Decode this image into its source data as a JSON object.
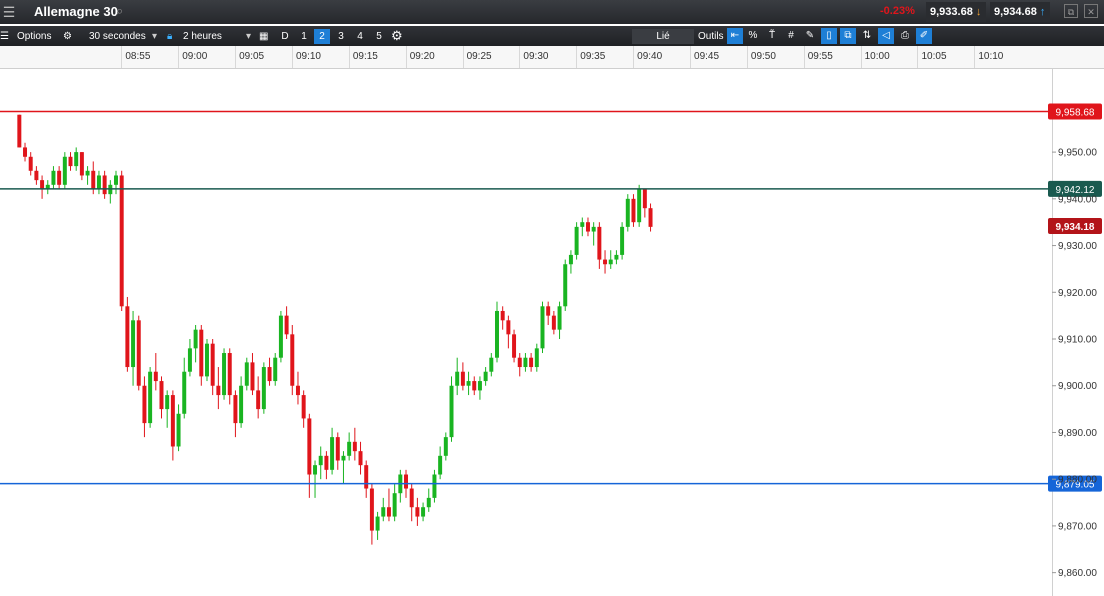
{
  "window": {
    "title": "Allemagne 30",
    "change": "-0.23%",
    "bid": "9,933.68",
    "ask": "9,934.68"
  },
  "toolbar": {
    "options_label": "Options",
    "interval": "30 secondes",
    "range": "2 heures",
    "d_label": "D",
    "layouts": [
      "1",
      "2",
      "3",
      "4",
      "5"
    ],
    "active_layout": "2",
    "linked_label": "Lié",
    "tools_label": "Outils",
    "percent_label": "%",
    "text_tool_label": "T̃"
  },
  "colors": {
    "bull": "#19b421",
    "bear": "#e0151b",
    "resistance": "#e0151b",
    "current": "#1a5a4f",
    "support": "#1565d8",
    "last": "#b31419"
  },
  "chart_data": {
    "type": "candlestick",
    "instrument": "Allemagne 30",
    "interval": "30 secondes",
    "x_ticks": [
      "08:55",
      "09:00",
      "09:05",
      "09:10",
      "09:15",
      "09:20",
      "09:25",
      "09:30",
      "09:35",
      "09:40",
      "09:45",
      "09:50",
      "09:55",
      "10:00",
      "10:05",
      "10:10"
    ],
    "y_ticks": [
      "9,860.00",
      "9,870.00",
      "9,880.00",
      "9,890.00",
      "9,900.00",
      "9,910.00",
      "9,920.00",
      "9,930.00",
      "9,940.00",
      "9,950.00"
    ],
    "ylim": [
      9855,
      9968
    ],
    "xlim_minutes": [
      -11.2,
      81.3
    ],
    "horizontal_lines": [
      {
        "value": 9958.68,
        "label": "9,958.68",
        "role": "resistance"
      },
      {
        "value": 9942.12,
        "label": "9,942.12",
        "role": "current"
      },
      {
        "value": 9879.05,
        "label": "9,879.05",
        "role": "support"
      }
    ],
    "last_price": {
      "value": 9934.18,
      "label": "9,934.18"
    },
    "start_time": "08:45:30",
    "candles": [
      [
        9958,
        9958,
        9951,
        9951
      ],
      [
        9951,
        9952,
        9948,
        9949
      ],
      [
        9949,
        9950,
        9945,
        9946
      ],
      [
        9946,
        9947,
        9943,
        9944
      ],
      [
        9944,
        9945,
        9940,
        9942
      ],
      [
        9942,
        9944,
        9941,
        9943
      ],
      [
        9943,
        9947,
        9942,
        9946
      ],
      [
        9946,
        9947,
        9942,
        9943
      ],
      [
        9943,
        9950,
        9942,
        9949
      ],
      [
        9949,
        9950,
        9946,
        9947
      ],
      [
        9947,
        9951,
        9946,
        9950
      ],
      [
        9950,
        9950,
        9944,
        9945
      ],
      [
        9945,
        9947,
        9943,
        9946
      ],
      [
        9946,
        9948,
        9941,
        9942
      ],
      [
        9942,
        9946,
        9941,
        9945
      ],
      [
        9945,
        9946,
        9940,
        9941
      ],
      [
        9941,
        9944,
        9939,
        9943
      ],
      [
        9943,
        9946,
        9941,
        9945
      ],
      [
        9945,
        9946,
        9916,
        9917
      ],
      [
        9917,
        9919,
        9903,
        9904
      ],
      [
        9904,
        9916,
        9900,
        9914
      ],
      [
        9914,
        9915,
        9899,
        9900
      ],
      [
        9900,
        9902,
        9889,
        9892
      ],
      [
        9892,
        9904,
        9891,
        9903
      ],
      [
        9903,
        9907,
        9899,
        9901
      ],
      [
        9901,
        9902,
        9893,
        9895
      ],
      [
        9895,
        9899,
        9891,
        9898
      ],
      [
        9898,
        9899,
        9884,
        9887
      ],
      [
        9887,
        9896,
        9886,
        9894
      ],
      [
        9894,
        9906,
        9893,
        9903
      ],
      [
        9903,
        9910,
        9902,
        9908
      ],
      [
        9908,
        9913,
        9905,
        9912
      ],
      [
        9912,
        9913,
        9900,
        9902
      ],
      [
        9902,
        9910,
        9901,
        9909
      ],
      [
        9909,
        9910,
        9898,
        9900
      ],
      [
        9900,
        9904,
        9895,
        9898
      ],
      [
        9898,
        9908,
        9897,
        9907
      ],
      [
        9907,
        9908,
        9896,
        9898
      ],
      [
        9898,
        9899,
        9889,
        9892
      ],
      [
        9892,
        9902,
        9891,
        9900
      ],
      [
        9900,
        9906,
        9899,
        9905
      ],
      [
        9905,
        9907,
        9898,
        9899
      ],
      [
        9899,
        9902,
        9893,
        9895
      ],
      [
        9895,
        9905,
        9894,
        9904
      ],
      [
        9904,
        9906,
        9900,
        9901
      ],
      [
        9901,
        9907,
        9900,
        9906
      ],
      [
        9906,
        9916,
        9905,
        9915
      ],
      [
        9915,
        9917,
        9910,
        9911
      ],
      [
        9911,
        9913,
        9898,
        9900
      ],
      [
        9900,
        9903,
        9896,
        9898
      ],
      [
        9898,
        9899,
        9891,
        9893
      ],
      [
        9893,
        9894,
        9876,
        9881
      ],
      [
        9881,
        9884,
        9876,
        9883
      ],
      [
        9883,
        9887,
        9880,
        9885
      ],
      [
        9885,
        9886,
        9880,
        9882
      ],
      [
        9882,
        9891,
        9881,
        9889
      ],
      [
        9889,
        9890,
        9882,
        9884
      ],
      [
        9884,
        9886,
        9879,
        9885
      ],
      [
        9885,
        9890,
        9884,
        9888
      ],
      [
        9888,
        9891,
        9884,
        9886
      ],
      [
        9886,
        9888,
        9881,
        9883
      ],
      [
        9883,
        9884,
        9876,
        9878
      ],
      [
        9878,
        9879,
        9866,
        9869
      ],
      [
        9869,
        9873,
        9867,
        9872
      ],
      [
        9872,
        9876,
        9871,
        9874
      ],
      [
        9874,
        9878,
        9871,
        9872
      ],
      [
        9872,
        9879,
        9871,
        9877
      ],
      [
        9877,
        9882,
        9875,
        9881
      ],
      [
        9881,
        9882,
        9876,
        9878
      ],
      [
        9878,
        9879,
        9871,
        9874
      ],
      [
        9874,
        9876,
        9870,
        9872
      ],
      [
        9872,
        9875,
        9871,
        9874
      ],
      [
        9874,
        9878,
        9873,
        9876
      ],
      [
        9876,
        9882,
        9875,
        9881
      ],
      [
        9881,
        9887,
        9880,
        9885
      ],
      [
        9885,
        9890,
        9884,
        9889
      ],
      [
        9889,
        9902,
        9888,
        9900
      ],
      [
        9900,
        9906,
        9898,
        9903
      ],
      [
        9903,
        9905,
        9899,
        9900
      ],
      [
        9900,
        9903,
        9898,
        9901
      ],
      [
        9901,
        9902,
        9898,
        9899
      ],
      [
        9899,
        9902,
        9897,
        9901
      ],
      [
        9901,
        9904,
        9900,
        9903
      ],
      [
        9903,
        9907,
        9902,
        9906
      ],
      [
        9906,
        9918,
        9905,
        9916
      ],
      [
        9916,
        9917,
        9912,
        9914
      ],
      [
        9914,
        9915,
        9908,
        9911
      ],
      [
        9911,
        9912,
        9905,
        9906
      ],
      [
        9906,
        9907,
        9902,
        9904
      ],
      [
        9904,
        9907,
        9903,
        9906
      ],
      [
        9906,
        9907,
        9903,
        9904
      ],
      [
        9904,
        9909,
        9903,
        9908
      ],
      [
        9908,
        9918,
        9907,
        9917
      ],
      [
        9917,
        9918,
        9913,
        9915
      ],
      [
        9915,
        9916,
        9911,
        9912
      ],
      [
        9912,
        9918,
        9910,
        9917
      ],
      [
        9917,
        9927,
        9916,
        9926
      ],
      [
        9926,
        9929,
        9924,
        9928
      ],
      [
        9928,
        9935,
        9927,
        9934
      ],
      [
        9934,
        9936,
        9932,
        9935
      ],
      [
        9935,
        9936,
        9932,
        9933
      ],
      [
        9933,
        9935,
        9930,
        9934
      ],
      [
        9934,
        9935,
        9925,
        9927
      ],
      [
        9927,
        9929,
        9924,
        9926
      ],
      [
        9926,
        9929,
        9925,
        9927
      ],
      [
        9927,
        9929,
        9926,
        9928
      ],
      [
        9928,
        9935,
        9927,
        9934
      ],
      [
        9934,
        9941,
        9933,
        9940
      ],
      [
        9940,
        9941,
        9934,
        9935
      ],
      [
        9935,
        9943,
        9934,
        9942
      ],
      [
        9942,
        9942,
        9936,
        9938
      ],
      [
        9938,
        9939,
        9933,
        9934
      ]
    ]
  }
}
